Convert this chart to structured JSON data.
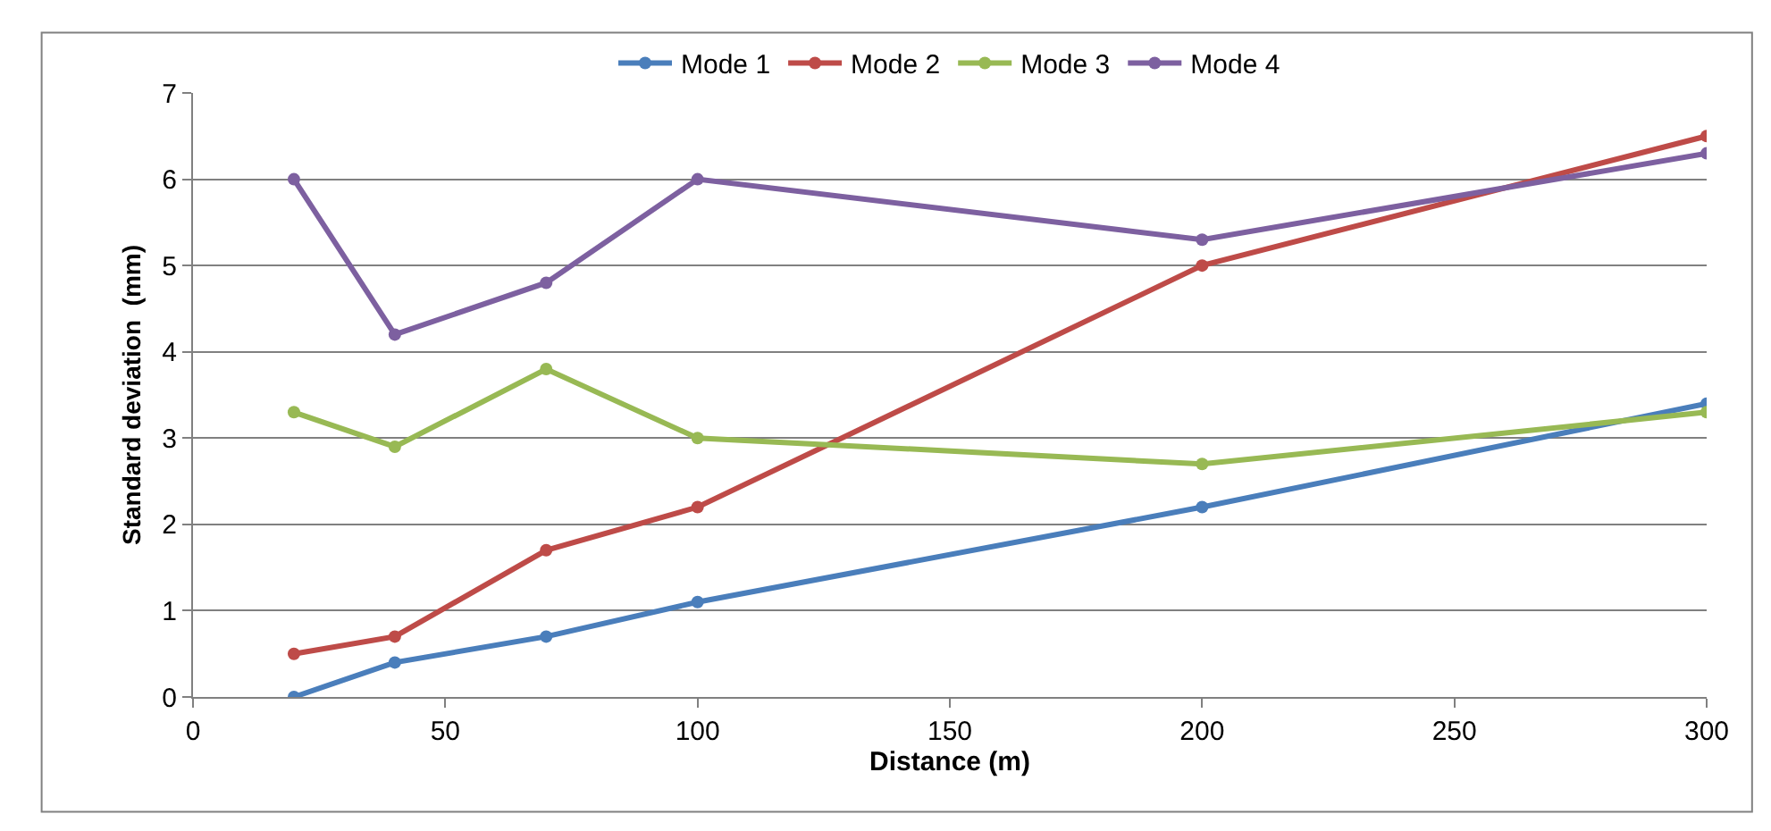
{
  "chart_data": {
    "type": "line",
    "x": [
      20,
      40,
      70,
      100,
      200,
      300
    ],
    "series": [
      {
        "name": "Mode 1",
        "color": "#4a7ebb",
        "values": [
          0,
          0.4,
          0.7,
          1.1,
          2.2,
          3.4
        ]
      },
      {
        "name": "Mode 2",
        "color": "#be4b48",
        "values": [
          0.5,
          0.7,
          1.7,
          2.2,
          5.0,
          6.5
        ]
      },
      {
        "name": "Mode 3",
        "color": "#98b954",
        "values": [
          3.3,
          2.9,
          3.8,
          3.0,
          2.7,
          3.3
        ]
      },
      {
        "name": "Mode 4",
        "color": "#7d60a0",
        "values": [
          6.0,
          4.2,
          4.8,
          6.0,
          5.3,
          6.3
        ]
      }
    ],
    "xlabel": "Distance (m)",
    "ylabel": "Standard deviation  (mm)",
    "xlim": [
      0,
      300
    ],
    "xticks": [
      0,
      50,
      100,
      150,
      200,
      250,
      300
    ],
    "ylim": [
      0,
      7
    ],
    "yticks": [
      0,
      1,
      2,
      3,
      4,
      5,
      6,
      7
    ],
    "grid": "y",
    "legend": "top",
    "marker": "circle",
    "line_style": "solid"
  }
}
